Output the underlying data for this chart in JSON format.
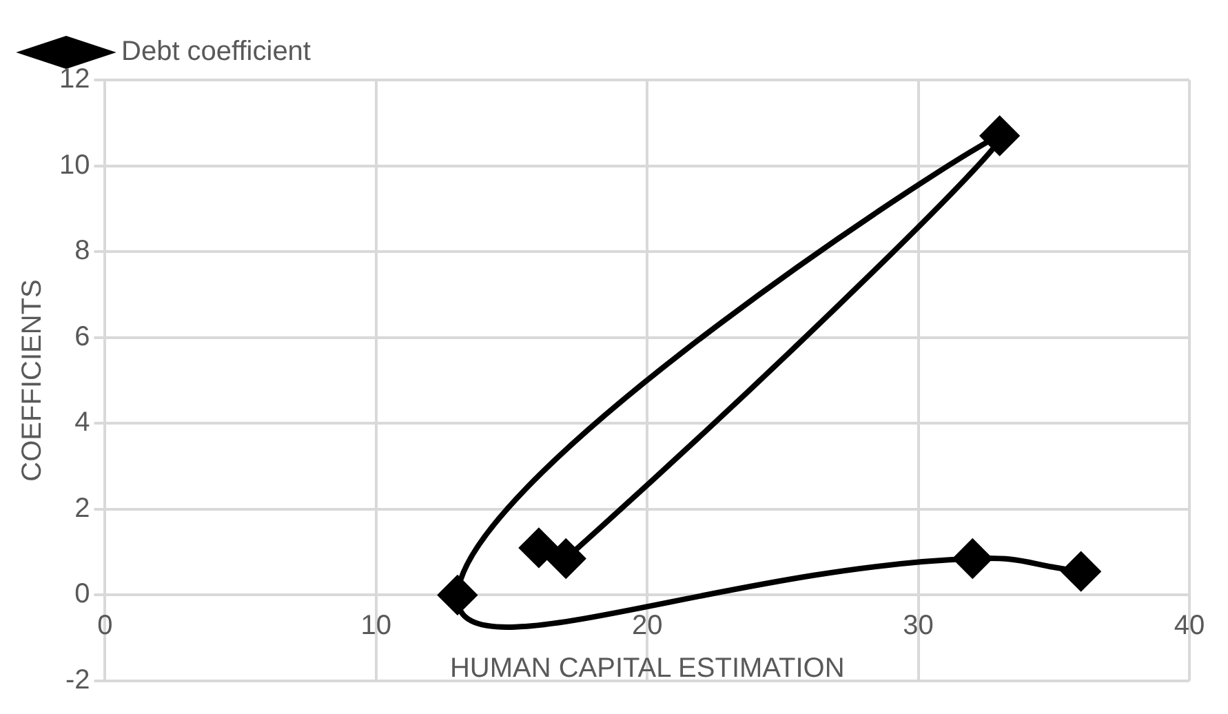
{
  "chart_data": {
    "type": "line",
    "xlabel": "HUMAN CAPITAL ESTIMATION",
    "ylabel": "COEFFICIENTS",
    "series": [
      {
        "name": "Debt coefficient",
        "color": "#000000",
        "x": [
          16,
          17,
          33,
          13,
          32,
          36
        ],
        "values": [
          1.1,
          0.85,
          10.7,
          0,
          0.85,
          0.55
        ]
      }
    ],
    "xlim": [
      0,
      40
    ],
    "xticks": [
      0,
      10,
      20,
      30,
      40
    ],
    "ylim": [
      -2,
      12
    ],
    "yticks": [
      -2,
      0,
      2,
      4,
      6,
      8,
      10,
      12
    ],
    "grid": true,
    "legend": "top left",
    "marker": "diamond",
    "line_style": "solid"
  }
}
